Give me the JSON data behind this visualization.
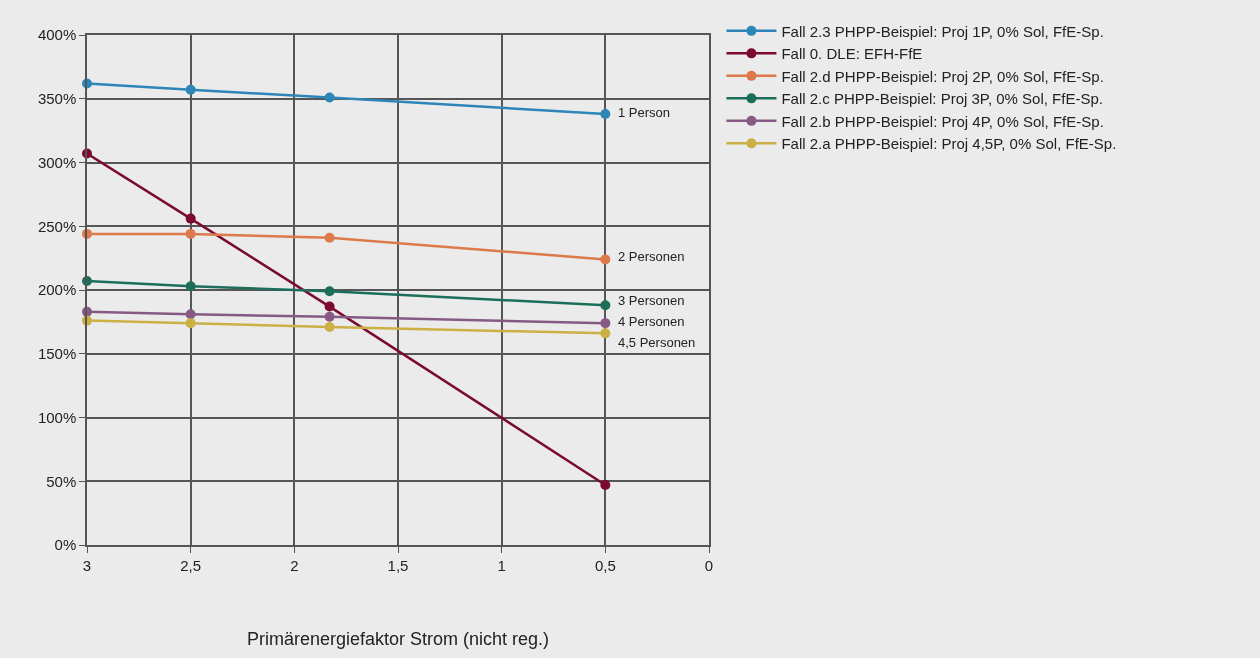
{
  "chart_data": {
    "type": "line",
    "xlabel": "Primärenergiefaktor Strom (nicht reg.)",
    "x": [
      3,
      2.5,
      1.83,
      0.5
    ],
    "series": [
      {
        "name": "Fall 2.3 PHPP-Beispiel: Proj 1P, 0% Sol, FfE-Sp.",
        "color": "#2e86b8",
        "values": [
          362,
          357,
          351,
          338
        ]
      },
      {
        "name": "Fall 0. DLE: EFH-FfE",
        "color": "#7a0a30",
        "values": [
          307,
          256,
          187,
          47
        ]
      },
      {
        "name": "Fall 2.d PHPP-Beispiel: Proj 2P, 0% Sol, FfE-Sp.",
        "color": "#dc7a4c",
        "values": [
          244,
          244,
          241,
          224
        ]
      },
      {
        "name": "Fall 2.c PHPP-Beispiel: Proj 3P, 0% Sol, FfE-Sp.",
        "color": "#1c6e5a",
        "values": [
          207,
          203,
          199,
          188
        ]
      },
      {
        "name": "Fall 2.b PHPP-Beispiel: Proj 4P, 0% Sol, FfE-Sp.",
        "color": "#865a85",
        "values": [
          183,
          181,
          179,
          174
        ]
      },
      {
        "name": "Fall 2.a PHPP-Beispiel: Proj 4,5P, 0% Sol, FfE-Sp.",
        "color": "#cbb045",
        "values": [
          176,
          174,
          171,
          166
        ]
      }
    ],
    "xlim": [
      3,
      0
    ],
    "xticks": [
      3,
      {
        "value": 2.5,
        "label": "2,5"
      },
      2,
      {
        "value": 1.5,
        "label": "1,5"
      },
      1,
      {
        "value": 0.5,
        "label": "0,5"
      },
      0
    ],
    "ylim": [
      0,
      400
    ],
    "yticks": [
      {
        "value": 0,
        "label": "0%"
      },
      {
        "value": 50,
        "label": "50%"
      },
      {
        "value": 100,
        "label": "100%"
      },
      {
        "value": 150,
        "label": "150%"
      },
      {
        "value": 200,
        "label": "200%"
      },
      {
        "value": 250,
        "label": "250%"
      },
      {
        "value": 300,
        "label": "300%"
      },
      {
        "value": 350,
        "label": "350%"
      },
      {
        "value": 400,
        "label": "400%"
      }
    ],
    "annotations": [
      "1 Person",
      "2 Personen",
      "3 Personen",
      "4 Personen",
      "4,5 Personen"
    ],
    "grid": true,
    "legend": "top right",
    "marker": "circle",
    "line_style": "solid"
  }
}
